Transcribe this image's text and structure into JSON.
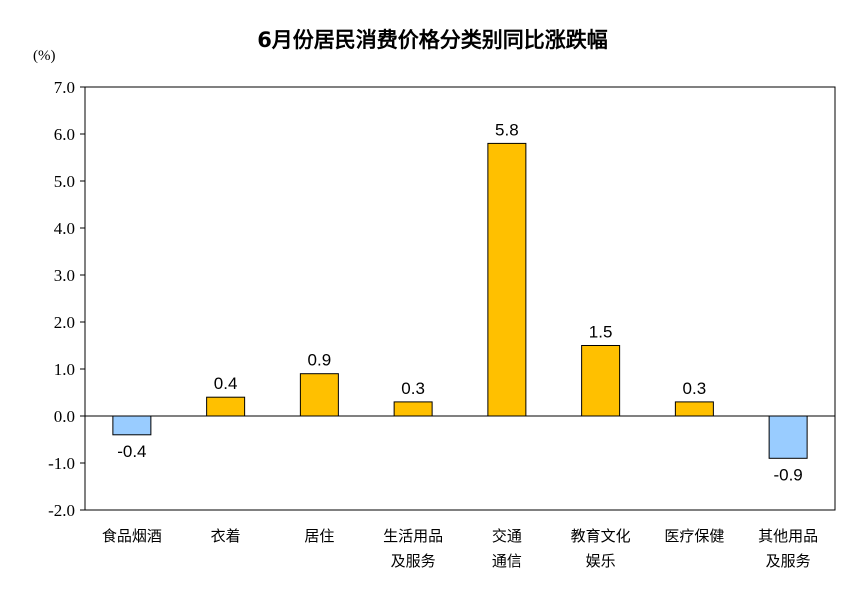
{
  "chart_data": {
    "type": "bar",
    "title": "6月份居民消费价格分类别同比涨跌幅",
    "unit": "(%)",
    "ylim": [
      -2.0,
      7.0
    ],
    "yticks": [
      "-2.0",
      "-1.0",
      "0.0",
      "1.0",
      "2.0",
      "3.0",
      "4.0",
      "5.0",
      "6.0",
      "7.0"
    ],
    "categories": [
      [
        "食品烟酒"
      ],
      [
        "衣着"
      ],
      [
        "居住"
      ],
      [
        "生活用品",
        "及服务"
      ],
      [
        "交通",
        "通信"
      ],
      [
        "教育文化",
        "娱乐"
      ],
      [
        "医疗保健"
      ],
      [
        "其他用品",
        "及服务"
      ]
    ],
    "values": [
      -0.4,
      0.4,
      0.9,
      0.3,
      5.8,
      1.5,
      0.3,
      -0.9
    ],
    "value_labels": [
      "-0.4",
      "0.4",
      "0.9",
      "0.3",
      "5.8",
      "1.5",
      "0.3",
      "-0.9"
    ],
    "colors": {
      "positive": "#FFC000",
      "negative": "#99CCFF",
      "edge": "#000000"
    },
    "grid": false,
    "legend": "none"
  }
}
